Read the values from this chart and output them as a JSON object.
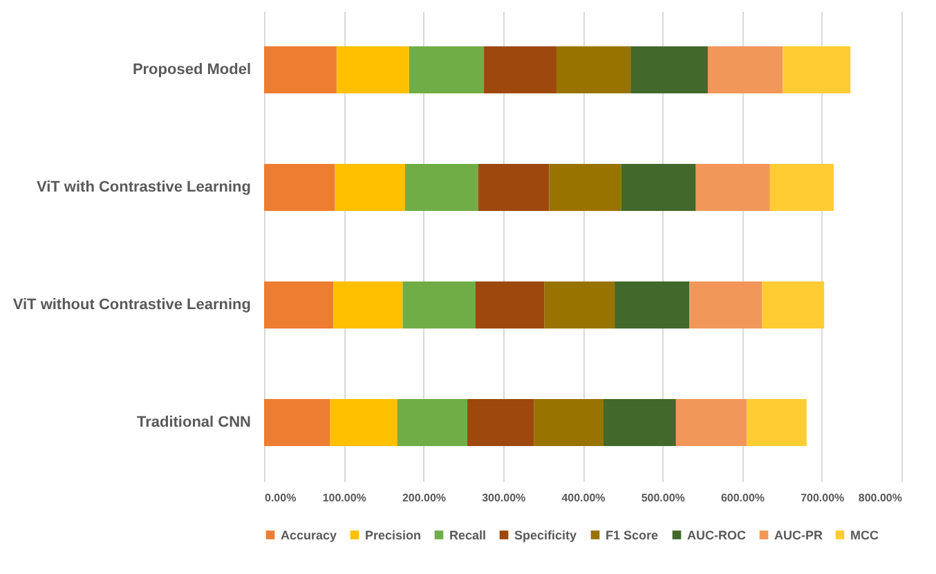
{
  "chart_data": {
    "type": "bar",
    "orientation": "horizontal",
    "stacked": true,
    "categories": [
      "Proposed Model",
      "ViT with Contrastive Learning",
      "ViT without Contrastive Learning",
      "Traditional CNN"
    ],
    "series": [
      {
        "name": "Accuracy",
        "color": "#ed7d31",
        "values": [
          91,
          89,
          87,
          83
        ]
      },
      {
        "name": "Precision",
        "color": "#ffc000",
        "values": [
          91,
          88,
          87,
          84
        ]
      },
      {
        "name": "Recall",
        "color": "#70ad47",
        "values": [
          94,
          92,
          91,
          88
        ]
      },
      {
        "name": "Specificity",
        "color": "#9e480e",
        "values": [
          91,
          89,
          87,
          84
        ]
      },
      {
        "name": "F1 Score",
        "color": "#997300",
        "values": [
          93,
          90,
          88,
          87
        ]
      },
      {
        "name": "AUC-ROC",
        "color": "#43682b",
        "values": [
          97,
          94,
          94,
          91
        ]
      },
      {
        "name": "AUC-PR",
        "color": "#f1975a",
        "values": [
          94,
          93,
          91,
          89
        ]
      },
      {
        "name": "MCC",
        "color": "#ffcd33",
        "values": [
          85,
          80,
          78,
          75
        ]
      }
    ],
    "xlim": [
      0,
      800
    ],
    "xticks": [
      {
        "value": 0,
        "label": "0.00%"
      },
      {
        "value": 100,
        "label": "100.00%"
      },
      {
        "value": 200,
        "label": "200.00%"
      },
      {
        "value": 300,
        "label": "300.00%"
      },
      {
        "value": 400,
        "label": "400.00%"
      },
      {
        "value": 500,
        "label": "500.00%"
      },
      {
        "value": 600,
        "label": "600.00%"
      },
      {
        "value": 700,
        "label": "700.00%"
      },
      {
        "value": 800,
        "label": "800.00%"
      }
    ],
    "grid": "x",
    "legend": "bottom"
  }
}
